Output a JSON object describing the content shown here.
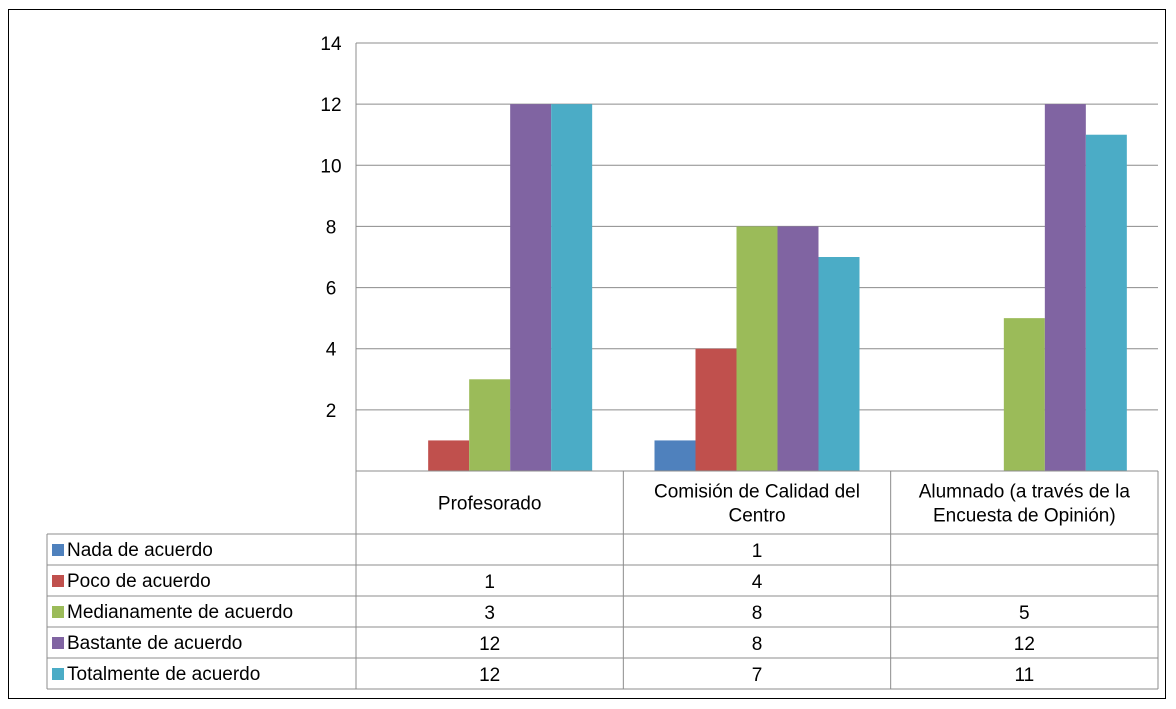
{
  "chart_data": {
    "type": "bar",
    "categories": [
      "Profesorado",
      "Comisión de Calidad del Centro",
      "Alumnado (a través de la Encuesta de Opinión)"
    ],
    "category_lines": [
      [
        "Profesorado"
      ],
      [
        "Comisión de Calidad del",
        "Centro"
      ],
      [
        "Alumnado (a través de la",
        "Encuesta de Opinión)"
      ]
    ],
    "series": [
      {
        "name": "Nada de acuerdo",
        "color": "#4F81BD",
        "values": [
          null,
          1,
          null
        ]
      },
      {
        "name": "Poco de acuerdo",
        "color": "#C0504D",
        "values": [
          1,
          4,
          null
        ]
      },
      {
        "name": "Medianamente de acuerdo",
        "color": "#9BBB59",
        "values": [
          3,
          8,
          5
        ]
      },
      {
        "name": "Bastante de acuerdo",
        "color": "#8064A2",
        "values": [
          12,
          8,
          12
        ]
      },
      {
        "name": "Totalmente de acuerdo",
        "color": "#4BACC6",
        "values": [
          12,
          7,
          11
        ]
      }
    ],
    "yticks": [
      2,
      4,
      6,
      8,
      10,
      12,
      14
    ],
    "ylim": [
      0,
      14
    ],
    "grid": true,
    "legend": "data-table"
  }
}
